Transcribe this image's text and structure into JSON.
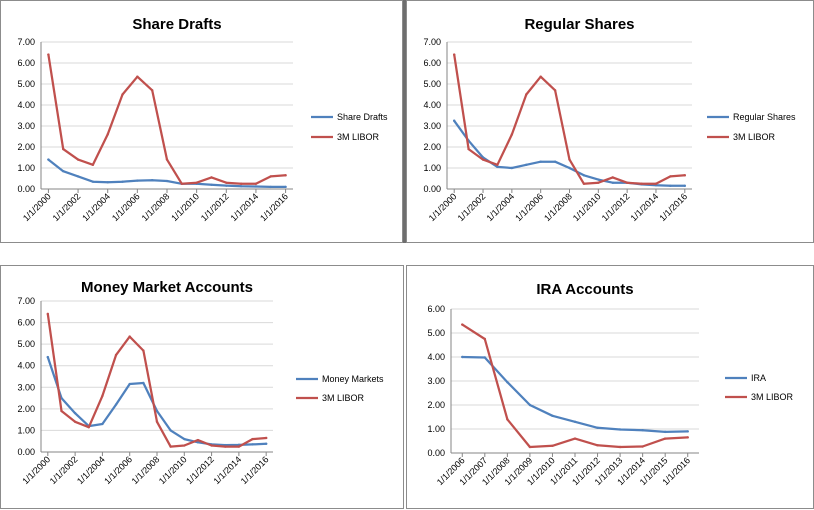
{
  "colors": {
    "series_blue": "#4f81bd",
    "series_red": "#c0504d",
    "grid": "#d9d9d9",
    "axis": "#868686",
    "text": "#000000"
  },
  "chart_data": [
    {
      "type": "line",
      "title": "Share Drafts",
      "xlabel": "",
      "ylabel": "",
      "x": [
        "1/1/2000",
        "1/1/2001",
        "1/1/2002",
        "1/1/2003",
        "1/1/2004",
        "1/1/2005",
        "1/1/2006",
        "1/1/2007",
        "1/1/2008",
        "1/1/2009",
        "1/1/2010",
        "1/1/2011",
        "1/1/2012",
        "1/1/2013",
        "1/1/2014",
        "1/1/2015",
        "1/1/2016"
      ],
      "x_tick_labels": [
        "1/1/2000",
        "1/1/2002",
        "1/1/2004",
        "1/1/2006",
        "1/1/2008",
        "1/1/2010",
        "1/1/2012",
        "1/1/2014",
        "1/1/2016"
      ],
      "y_tick_labels": [
        "0.00",
        "1.00",
        "2.00",
        "3.00",
        "4.00",
        "5.00",
        "6.00",
        "7.00"
      ],
      "ylim": [
        0,
        7
      ],
      "grid": true,
      "legend": "right",
      "series": [
        {
          "name": "Share Drafts",
          "color": "#4f81bd",
          "values": [
            1.4,
            0.85,
            0.6,
            0.35,
            0.32,
            0.35,
            0.4,
            0.42,
            0.38,
            0.25,
            0.25,
            0.2,
            0.16,
            0.13,
            0.12,
            0.1,
            0.1
          ]
        },
        {
          "name": "3M LIBOR",
          "color": "#c0504d",
          "values": [
            6.4,
            1.9,
            1.4,
            1.15,
            2.6,
            4.5,
            5.35,
            4.7,
            1.4,
            0.25,
            0.3,
            0.55,
            0.3,
            0.25,
            0.25,
            0.6,
            0.65
          ]
        }
      ]
    },
    {
      "type": "line",
      "title": "Regular Shares",
      "xlabel": "",
      "ylabel": "",
      "x": [
        "1/1/2000",
        "1/1/2001",
        "1/1/2002",
        "1/1/2003",
        "1/1/2004",
        "1/1/2005",
        "1/1/2006",
        "1/1/2007",
        "1/1/2008",
        "1/1/2009",
        "1/1/2010",
        "1/1/2011",
        "1/1/2012",
        "1/1/2013",
        "1/1/2014",
        "1/1/2015",
        "1/1/2016"
      ],
      "x_tick_labels": [
        "1/1/2000",
        "1/1/2002",
        "1/1/2004",
        "1/1/2006",
        "1/1/2008",
        "1/1/2010",
        "1/1/2012",
        "1/1/2014",
        "1/1/2016"
      ],
      "y_tick_labels": [
        "0.00",
        "1.00",
        "2.00",
        "3.00",
        "4.00",
        "5.00",
        "6.00",
        "7.00"
      ],
      "ylim": [
        0,
        7
      ],
      "grid": true,
      "legend": "right",
      "series": [
        {
          "name": "Regular Shares",
          "color": "#4f81bd",
          "values": [
            3.25,
            2.3,
            1.5,
            1.05,
            1.0,
            1.15,
            1.3,
            1.3,
            1.0,
            0.65,
            0.45,
            0.3,
            0.3,
            0.22,
            0.18,
            0.15,
            0.15
          ]
        },
        {
          "name": "3M LIBOR",
          "color": "#c0504d",
          "values": [
            6.4,
            1.9,
            1.4,
            1.15,
            2.6,
            4.5,
            5.35,
            4.7,
            1.4,
            0.25,
            0.3,
            0.55,
            0.3,
            0.25,
            0.25,
            0.6,
            0.65
          ]
        }
      ]
    },
    {
      "type": "line",
      "title": "Money Market Accounts",
      "xlabel": "",
      "ylabel": "",
      "x": [
        "1/1/2000",
        "1/1/2001",
        "1/1/2002",
        "1/1/2003",
        "1/1/2004",
        "1/1/2005",
        "1/1/2006",
        "1/1/2007",
        "1/1/2008",
        "1/1/2009",
        "1/1/2010",
        "1/1/2011",
        "1/1/2012",
        "1/1/2013",
        "1/1/2014",
        "1/1/2015",
        "1/1/2016"
      ],
      "x_tick_labels": [
        "1/1/2000",
        "1/1/2002",
        "1/1/2004",
        "1/1/2006",
        "1/1/2008",
        "1/1/2010",
        "1/1/2012",
        "1/1/2014",
        "1/1/2016"
      ],
      "y_tick_labels": [
        "0.00",
        "1.00",
        "2.00",
        "3.00",
        "4.00",
        "5.00",
        "6.00",
        "7.00"
      ],
      "ylim": [
        0,
        7
      ],
      "grid": true,
      "legend": "right",
      "series": [
        {
          "name": "Money Markets",
          "color": "#4f81bd",
          "values": [
            4.4,
            2.5,
            1.8,
            1.2,
            1.3,
            2.2,
            3.15,
            3.2,
            1.9,
            1.0,
            0.6,
            0.45,
            0.35,
            0.32,
            0.33,
            0.35,
            0.38
          ]
        },
        {
          "name": "3M LIBOR",
          "color": "#c0504d",
          "values": [
            6.4,
            1.9,
            1.4,
            1.15,
            2.6,
            4.5,
            5.35,
            4.7,
            1.4,
            0.25,
            0.3,
            0.55,
            0.3,
            0.25,
            0.25,
            0.6,
            0.65
          ]
        }
      ]
    },
    {
      "type": "line",
      "title": "IRA Accounts",
      "xlabel": "",
      "ylabel": "",
      "x": [
        "1/1/2006",
        "1/1/2007",
        "1/1/2008",
        "1/1/2009",
        "1/1/2010",
        "1/1/2011",
        "1/1/2012",
        "1/1/2013",
        "1/1/2014",
        "1/1/2015",
        "1/1/2016"
      ],
      "x_tick_labels": [
        "1/1/2006",
        "1/1/2007",
        "1/1/2008",
        "1/1/2009",
        "1/1/2010",
        "1/1/2011",
        "1/1/2012",
        "1/1/2013",
        "1/1/2014",
        "1/1/2015",
        "1/1/2016"
      ],
      "y_tick_labels": [
        "0.00",
        "1.00",
        "2.00",
        "3.00",
        "4.00",
        "5.00",
        "6.00"
      ],
      "ylim": [
        0,
        6
      ],
      "grid": true,
      "legend": "right",
      "series": [
        {
          "name": "IRA",
          "color": "#4f81bd",
          "values": [
            4.0,
            3.98,
            2.95,
            2.0,
            1.55,
            1.3,
            1.05,
            0.98,
            0.95,
            0.88,
            0.9
          ]
        },
        {
          "name": "3M LIBOR",
          "color": "#c0504d",
          "values": [
            5.35,
            4.75,
            1.4,
            0.25,
            0.3,
            0.6,
            0.32,
            0.25,
            0.27,
            0.6,
            0.65
          ]
        }
      ]
    }
  ]
}
